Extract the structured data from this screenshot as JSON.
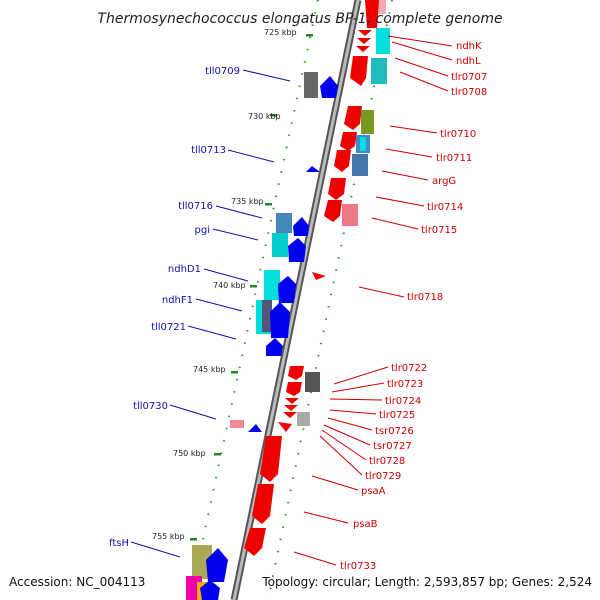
{
  "title": "Thermosynechococcus elongatus BP-1, complete genome",
  "footer": {
    "accession": "Accession: NC_004113",
    "topology": "Topology: circular; Length: 2,593,857 bp; Genes: 2,524"
  },
  "colors": {
    "forward_cds": "#ff0000",
    "reverse_cds": "#0000ff",
    "left_label": "#1111aa",
    "right_label": "#cc0000",
    "scale_tick": "#228822",
    "backbone": "#888888"
  },
  "scale_ticks": [
    "725 kbp",
    "730 kbp",
    "735 kbp",
    "740 kbp",
    "745 kbp",
    "750 kbp",
    "755 kbp"
  ],
  "left_labels": [
    "tll0709",
    "tll0713",
    "tll0716",
    "pgi",
    "ndhD1",
    "ndhF1",
    "tll0721",
    "tll0730",
    "ftsH"
  ],
  "right_labels": [
    "ndhK",
    "ndhL",
    "tlr0707",
    "tlr0708",
    "tlr0710",
    "tlr0711",
    "argG",
    "tlr0714",
    "tlr0715",
    "tlr0718",
    "tlr0722",
    "tlr0723",
    "tlr0724",
    "tlr0725",
    "tsr0726",
    "tsr0727",
    "tlr0728",
    "tlr0729",
    "psaA",
    "psaB",
    "tlr0733"
  ]
}
